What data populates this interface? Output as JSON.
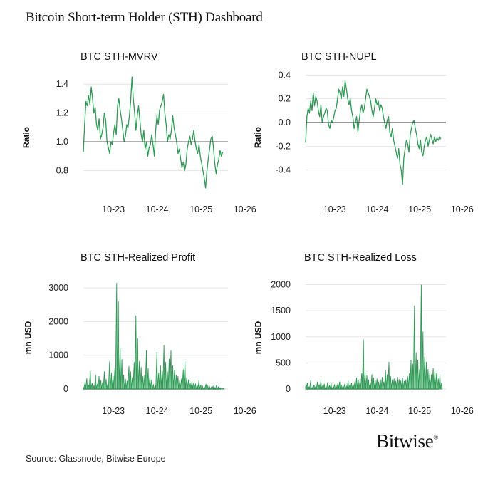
{
  "page": {
    "title": "Bitcoin Short-term Holder (STH) Dashboard",
    "source": "Source: Glassnode, Bitwise Europe",
    "brand": "Bitwise",
    "brand_mark": "®"
  },
  "colors": {
    "line": "#2e9a55",
    "baseline": "#333333",
    "grid": "#e6e6e6"
  },
  "chart_data": [
    {
      "id": "mvrv",
      "type": "line",
      "title": "BTC STH-MVRV",
      "ylabel": "Ratio",
      "xlim": [
        2023.0,
        2026.3
      ],
      "ylim": [
        0.66,
        1.48
      ],
      "yticks": [
        0.8,
        1.0,
        1.2,
        1.4
      ],
      "ytick_labels": [
        "0.8",
        "1.0",
        "1.2",
        "1.4"
      ],
      "xticks": [
        2023.75,
        2024.75,
        2025.75,
        2026.75
      ],
      "xtick_labels": [
        "10-23",
        "10-24",
        "10-25",
        "10-26"
      ],
      "baseline": 1.0,
      "x": [
        2023.0,
        2023.03,
        2023.06,
        2023.09,
        2023.12,
        2023.15,
        2023.18,
        2023.21,
        2023.24,
        2023.27,
        2023.3,
        2023.33,
        2023.36,
        2023.39,
        2023.42,
        2023.45,
        2023.48,
        2023.51,
        2023.54,
        2023.57,
        2023.6,
        2023.63,
        2023.66,
        2023.69,
        2023.72,
        2023.75,
        2023.78,
        2023.81,
        2023.84,
        2023.87,
        2023.9,
        2023.93,
        2023.96,
        2023.99,
        2024.02,
        2024.05,
        2024.08,
        2024.11,
        2024.14,
        2024.17,
        2024.2,
        2024.23,
        2024.26,
        2024.29,
        2024.32,
        2024.35,
        2024.38,
        2024.41,
        2024.44,
        2024.47,
        2024.5,
        2024.53,
        2024.56,
        2024.59,
        2024.62,
        2024.65,
        2024.68,
        2024.71,
        2024.74,
        2024.77,
        2024.8,
        2024.83,
        2024.86,
        2024.89,
        2024.92,
        2024.95,
        2024.98,
        2025.01,
        2025.04,
        2025.07,
        2025.1,
        2025.13,
        2025.16,
        2025.19,
        2025.22,
        2025.25,
        2025.28,
        2025.31,
        2025.34,
        2025.37,
        2025.4,
        2025.43,
        2025.46,
        2025.49,
        2025.52,
        2025.55,
        2025.58,
        2025.61,
        2025.64,
        2025.67,
        2025.7,
        2025.73,
        2025.76,
        2025.79,
        2025.82,
        2025.85,
        2025.88,
        2025.91,
        2025.94,
        2025.97,
        2026.0,
        2026.03,
        2026.06,
        2026.09,
        2026.12,
        2026.15,
        2026.18
      ],
      "y": [
        0.93,
        1.12,
        1.28,
        1.25,
        1.32,
        1.26,
        1.38,
        1.3,
        1.2,
        1.24,
        1.12,
        1.08,
        1.16,
        1.02,
        1.05,
        1.1,
        1.2,
        1.15,
        1.0,
        0.96,
        0.92,
        1.0,
        0.98,
        1.06,
        1.12,
        1.05,
        1.25,
        1.3,
        1.22,
        1.16,
        1.08,
        1.0,
        1.04,
        1.12,
        1.1,
        1.18,
        1.28,
        1.45,
        1.3,
        1.2,
        1.08,
        1.18,
        1.25,
        1.15,
        1.05,
        1.0,
        1.08,
        0.95,
        1.0,
        0.9,
        0.96,
        0.98,
        1.05,
        0.98,
        0.9,
        1.08,
        1.18,
        1.12,
        1.22,
        1.25,
        1.28,
        1.33,
        1.2,
        1.12,
        1.0,
        1.05,
        1.02,
        1.08,
        1.18,
        1.1,
        1.05,
        1.0,
        0.92,
        0.95,
        0.88,
        0.82,
        0.86,
        0.8,
        0.84,
        0.95,
        1.0,
        1.04,
        0.98,
        1.02,
        1.08,
        1.0,
        0.95,
        0.92,
        0.98,
        0.9,
        0.85,
        0.8,
        0.75,
        0.68,
        0.8,
        0.88,
        0.95,
        1.02,
        1.04,
        0.96,
        0.85,
        0.78,
        0.84,
        0.88,
        0.94,
        0.9,
        0.93
      ]
    },
    {
      "id": "nupl",
      "type": "line",
      "title": "BTC STH-NUPL",
      "ylabel": "Ratio",
      "xlim": [
        2023.0,
        2026.3
      ],
      "ylim": [
        -0.54,
        0.42
      ],
      "yticks": [
        -0.4,
        -0.2,
        0.0,
        0.2,
        0.4
      ],
      "ytick_labels": [
        "-0.4",
        "-0.2",
        "0.0",
        "0.2",
        "0.4"
      ],
      "xticks": [
        2023.75,
        2024.75,
        2025.75,
        2026.75
      ],
      "xtick_labels": [
        "10-23",
        "10-24",
        "10-25",
        "10-26"
      ],
      "baseline": 0.0,
      "x": [
        2023.0,
        2023.03,
        2023.06,
        2023.09,
        2023.12,
        2023.15,
        2023.18,
        2023.21,
        2023.24,
        2023.27,
        2023.3,
        2023.33,
        2023.36,
        2023.39,
        2023.42,
        2023.45,
        2023.48,
        2023.51,
        2023.54,
        2023.57,
        2023.6,
        2023.63,
        2023.66,
        2023.69,
        2023.72,
        2023.75,
        2023.78,
        2023.81,
        2023.84,
        2023.87,
        2023.9,
        2023.93,
        2023.96,
        2023.99,
        2024.02,
        2024.05,
        2024.08,
        2024.11,
        2024.14,
        2024.17,
        2024.2,
        2024.23,
        2024.26,
        2024.29,
        2024.32,
        2024.35,
        2024.38,
        2024.41,
        2024.44,
        2024.47,
        2024.5,
        2024.53,
        2024.56,
        2024.59,
        2024.62,
        2024.65,
        2024.68,
        2024.71,
        2024.74,
        2024.77,
        2024.8,
        2024.83,
        2024.86,
        2024.89,
        2024.92,
        2024.95,
        2024.98,
        2025.01,
        2025.04,
        2025.07,
        2025.1,
        2025.13,
        2025.16,
        2025.19,
        2025.22,
        2025.25,
        2025.28,
        2025.31,
        2025.34,
        2025.37,
        2025.4,
        2025.43,
        2025.46,
        2025.49,
        2025.52,
        2025.55,
        2025.58,
        2025.61,
        2025.64,
        2025.67,
        2025.7,
        2025.73,
        2025.76,
        2025.79,
        2025.82,
        2025.85,
        2025.88,
        2025.91,
        2025.94,
        2025.97,
        2026.0,
        2026.03,
        2026.06,
        2026.09,
        2026.12,
        2026.15,
        2026.18
      ],
      "y": [
        -0.17,
        0.05,
        0.12,
        0.08,
        0.18,
        0.1,
        0.25,
        0.14,
        0.22,
        0.18,
        0.1,
        0.05,
        0.15,
        0.0,
        0.05,
        0.08,
        0.12,
        0.1,
        -0.02,
        -0.05,
        0.02,
        0.0,
        0.04,
        0.1,
        0.12,
        0.2,
        0.28,
        0.25,
        0.2,
        0.3,
        0.22,
        0.35,
        0.28,
        0.2,
        0.15,
        0.2,
        0.1,
        0.05,
        -0.05,
        0.0,
        0.05,
        -0.08,
        0.02,
        0.1,
        0.15,
        0.08,
        0.12,
        0.2,
        0.28,
        0.25,
        0.22,
        0.18,
        0.1,
        0.05,
        0.12,
        0.2,
        0.15,
        0.18,
        0.1,
        0.15,
        0.12,
        0.05,
        0.0,
        -0.05,
        0.02,
        0.05,
        -0.08,
        -0.12,
        -0.05,
        -0.15,
        -0.2,
        -0.25,
        -0.3,
        -0.22,
        -0.35,
        -0.4,
        -0.52,
        -0.3,
        -0.22,
        -0.15,
        -0.18,
        -0.25,
        -0.1,
        -0.05,
        0.0,
        0.02,
        -0.05,
        -0.1,
        -0.18,
        -0.22,
        -0.15,
        -0.25,
        -0.28,
        -0.2,
        -0.15,
        -0.12,
        -0.2,
        -0.15,
        -0.1,
        -0.14,
        -0.18,
        -0.12,
        -0.16,
        -0.13,
        -0.15,
        -0.12,
        -0.14
      ]
    },
    {
      "id": "profit",
      "type": "area",
      "title": "BTC STH-Realized Profit",
      "ylabel": "mn USD",
      "xlim": [
        2023.0,
        2026.3
      ],
      "ylim": [
        0,
        3300
      ],
      "yticks": [
        0,
        1000,
        2000,
        3000
      ],
      "ytick_labels": [
        "0",
        "1000",
        "2000",
        "3000"
      ],
      "xticks": [
        2023.75,
        2024.75,
        2025.75,
        2026.75
      ],
      "xtick_labels": [
        "10-23",
        "10-24",
        "10-25",
        "10-26"
      ],
      "x": [
        2023.0,
        2023.04,
        2023.08,
        2023.12,
        2023.16,
        2023.2,
        2023.24,
        2023.28,
        2023.32,
        2023.36,
        2023.4,
        2023.44,
        2023.48,
        2023.52,
        2023.56,
        2023.6,
        2023.64,
        2023.68,
        2023.72,
        2023.76,
        2023.8,
        2023.84,
        2023.88,
        2023.92,
        2023.96,
        2024.0,
        2024.04,
        2024.08,
        2024.12,
        2024.16,
        2024.2,
        2024.24,
        2024.28,
        2024.32,
        2024.36,
        2024.4,
        2024.44,
        2024.48,
        2024.52,
        2024.56,
        2024.6,
        2024.64,
        2024.68,
        2024.72,
        2024.76,
        2024.8,
        2024.84,
        2024.88,
        2024.92,
        2024.96,
        2025.0,
        2025.04,
        2025.08,
        2025.12,
        2025.16,
        2025.2,
        2025.24,
        2025.28,
        2025.32,
        2025.36,
        2025.4,
        2025.44,
        2025.48,
        2025.52,
        2025.56,
        2025.6,
        2025.64,
        2025.68,
        2025.72,
        2025.76,
        2025.8,
        2025.84,
        2025.88,
        2025.92,
        2025.96,
        2026.0,
        2026.04,
        2026.08,
        2026.12,
        2026.16,
        2026.2
      ],
      "y": [
        60,
        200,
        320,
        120,
        540,
        180,
        90,
        420,
        150,
        380,
        260,
        200,
        520,
        300,
        150,
        820,
        480,
        380,
        620,
        3150,
        2600,
        1200,
        880,
        420,
        300,
        240,
        680,
        520,
        350,
        800,
        2180,
        1500,
        820,
        650,
        380,
        420,
        1150,
        620,
        380,
        280,
        140,
        90,
        1100,
        480,
        700,
        520,
        1300,
        800,
        520,
        900,
        1150,
        700,
        560,
        420,
        380,
        260,
        310,
        580,
        820,
        340,
        280,
        170,
        230,
        190,
        160,
        90,
        260,
        120,
        80,
        60,
        150,
        90,
        70,
        50,
        80,
        40,
        110,
        60,
        40,
        30,
        20
      ]
    },
    {
      "id": "loss",
      "type": "area",
      "title": "BTC STH-Realized Loss",
      "ylabel": "mn USD",
      "xlim": [
        2023.0,
        2026.3
      ],
      "ylim": [
        0,
        2130
      ],
      "yticks": [
        0,
        500,
        1000,
        1500,
        2000
      ],
      "ytick_labels": [
        "0",
        "500",
        "1000",
        "1500",
        "2000"
      ],
      "xticks": [
        2023.75,
        2024.75,
        2025.75,
        2026.75
      ],
      "xtick_labels": [
        "10-23",
        "10-24",
        "10-25",
        "10-26"
      ],
      "x": [
        2023.0,
        2023.04,
        2023.08,
        2023.12,
        2023.16,
        2023.2,
        2023.24,
        2023.28,
        2023.32,
        2023.36,
        2023.4,
        2023.44,
        2023.48,
        2023.52,
        2023.56,
        2023.6,
        2023.64,
        2023.68,
        2023.72,
        2023.76,
        2023.8,
        2023.84,
        2023.88,
        2023.92,
        2023.96,
        2024.0,
        2024.04,
        2024.08,
        2024.12,
        2024.16,
        2024.2,
        2024.24,
        2024.28,
        2024.32,
        2024.36,
        2024.4,
        2024.44,
        2024.48,
        2024.52,
        2024.56,
        2024.6,
        2024.64,
        2024.68,
        2024.72,
        2024.76,
        2024.8,
        2024.84,
        2024.88,
        2024.92,
        2024.96,
        2025.0,
        2025.04,
        2025.08,
        2025.12,
        2025.16,
        2025.2,
        2025.24,
        2025.28,
        2025.32,
        2025.36,
        2025.4,
        2025.44,
        2025.48,
        2025.52,
        2025.56,
        2025.6,
        2025.64,
        2025.68,
        2025.72,
        2025.76,
        2025.8,
        2025.84,
        2025.88,
        2025.92,
        2025.96,
        2026.0,
        2026.04,
        2026.08,
        2026.12,
        2026.16,
        2026.2
      ],
      "y": [
        60,
        120,
        40,
        170,
        30,
        80,
        50,
        140,
        90,
        160,
        60,
        100,
        40,
        130,
        70,
        110,
        30,
        90,
        60,
        120,
        140,
        80,
        60,
        100,
        50,
        160,
        80,
        120,
        90,
        140,
        220,
        180,
        150,
        300,
        950,
        320,
        260,
        180,
        120,
        280,
        220,
        160,
        200,
        140,
        180,
        230,
        140,
        360,
        280,
        520,
        240,
        180,
        200,
        150,
        230,
        190,
        160,
        220,
        150,
        180,
        240,
        300,
        560,
        480,
        1600,
        700,
        560,
        380,
        2000,
        1100,
        620,
        520,
        380,
        300,
        280,
        400,
        350,
        300,
        200,
        280,
        120
      ]
    }
  ]
}
